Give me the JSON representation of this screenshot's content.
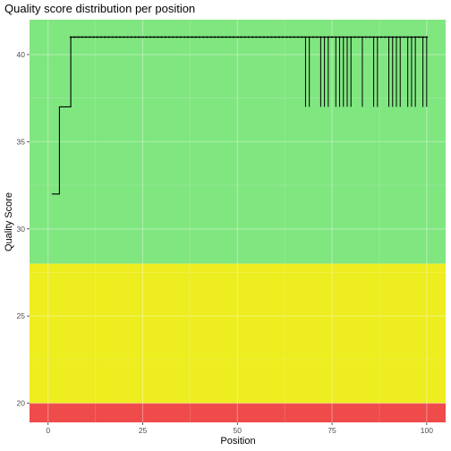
{
  "chart_data": {
    "type": "line",
    "title": "Quality score distribution per position",
    "xlabel": "Position",
    "ylabel": "Quality Score",
    "xlim": [
      -4.9,
      105
    ],
    "ylim": [
      18.9,
      42
    ],
    "x_ticks": [
      0,
      25,
      50,
      75,
      100
    ],
    "y_ticks": [
      20,
      25,
      30,
      35,
      40
    ],
    "grid": true,
    "bands": [
      {
        "from": 28,
        "to": 42,
        "color": "#80E680"
      },
      {
        "from": 20,
        "to": 28,
        "color": "#EDED20"
      },
      {
        "from": 18.9,
        "to": 20,
        "color": "#EF4B4B"
      }
    ],
    "series": [
      {
        "line_color": "#000000",
        "step_points": [
          [
            1,
            32
          ],
          [
            2,
            32
          ],
          [
            3,
            37
          ],
          [
            4,
            37
          ],
          [
            5,
            37
          ],
          [
            6,
            41
          ],
          [
            100,
            41
          ]
        ],
        "dips": [
          {
            "x": 68,
            "y": 37
          },
          {
            "x": 69,
            "y": 37
          },
          {
            "x": 72,
            "y": 37
          },
          {
            "x": 73,
            "y": 37
          },
          {
            "x": 74,
            "y": 37
          },
          {
            "x": 76,
            "y": 37
          },
          {
            "x": 77,
            "y": 37
          },
          {
            "x": 78,
            "y": 37
          },
          {
            "x": 79,
            "y": 37
          },
          {
            "x": 80,
            "y": 37
          },
          {
            "x": 83,
            "y": 37
          },
          {
            "x": 86,
            "y": 37
          },
          {
            "x": 87,
            "y": 37
          },
          {
            "x": 90,
            "y": 37
          },
          {
            "x": 91,
            "y": 37
          },
          {
            "x": 92,
            "y": 37
          },
          {
            "x": 93,
            "y": 37
          },
          {
            "x": 95,
            "y": 37
          },
          {
            "x": 96,
            "y": 37
          },
          {
            "x": 97,
            "y": 37
          },
          {
            "x": 99,
            "y": 37
          },
          {
            "x": 100,
            "y": 37
          }
        ]
      }
    ]
  }
}
